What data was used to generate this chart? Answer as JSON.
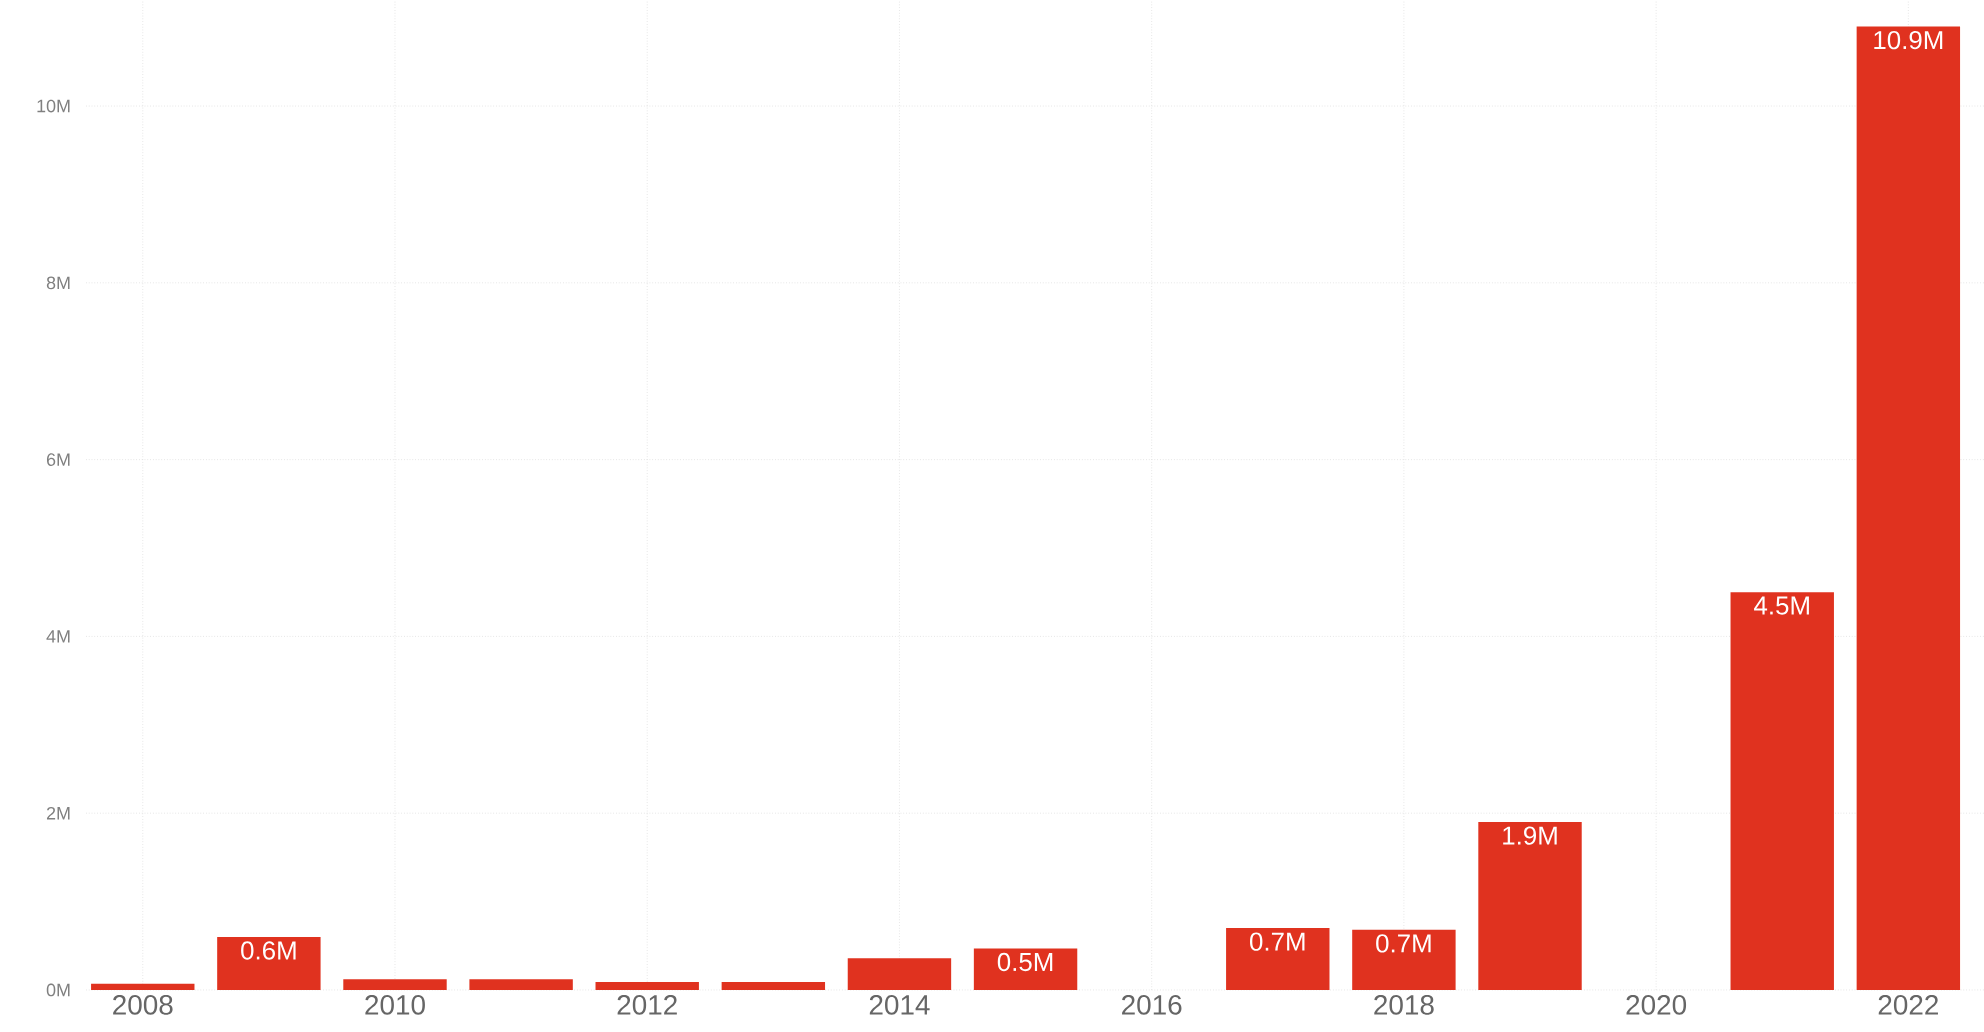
{
  "chart_data": {
    "type": "bar",
    "x": [
      2008,
      2009,
      2010,
      2011,
      2012,
      2013,
      2014,
      2015,
      2016,
      2017,
      2018,
      2019,
      2020,
      2021,
      2022
    ],
    "values": [
      0.07,
      0.6,
      0.12,
      0.12,
      0.09,
      0.09,
      0.36,
      0.47,
      null,
      0.7,
      0.68,
      1.9,
      null,
      4.5,
      10.9
    ],
    "value_labels": [
      null,
      "0.6M",
      null,
      null,
      null,
      null,
      null,
      "0.5M",
      null,
      "0.7M",
      "0.7M",
      "1.9M",
      null,
      "4.5M",
      "10.9M"
    ],
    "color": "#e0321f",
    "xlim": [
      2007.55,
      2022.6
    ],
    "xticks": [
      2008,
      2010,
      2012,
      2014,
      2016,
      2018,
      2020,
      2022
    ],
    "ylim": [
      0,
      11.2
    ],
    "yticks": [
      {
        "value": 0,
        "label": "0M"
      },
      {
        "value": 2,
        "label": "2M"
      },
      {
        "value": 4,
        "label": "4M"
      },
      {
        "value": 6,
        "label": "6M"
      },
      {
        "value": 8,
        "label": "8M"
      },
      {
        "value": 10,
        "label": "10M"
      }
    ],
    "grid": true
  }
}
